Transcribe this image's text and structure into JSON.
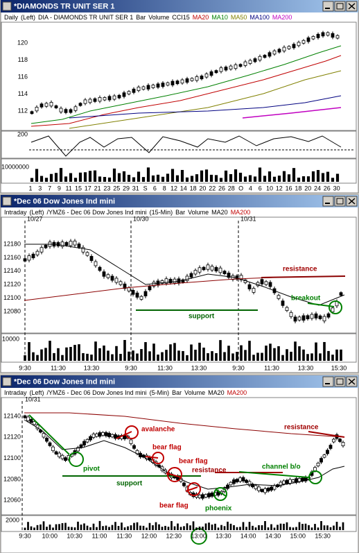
{
  "windows": [
    {
      "title": "*DIAMONDS TR UNIT SER 1",
      "header": [
        {
          "label": "Daily",
          "color": "#000000"
        },
        {
          "label": "(Left)",
          "color": "#000000"
        },
        {
          "label": "DIA - DIAMONDS TR UNIT SER 1",
          "color": "#000000"
        },
        {
          "label": "Bar",
          "color": "#000000"
        },
        {
          "label": "Volume",
          "color": "#000000"
        },
        {
          "label": "CCI15",
          "color": "#000000"
        },
        {
          "label": "MA20",
          "color": "#c00000"
        },
        {
          "label": "MA10",
          "color": "#008000"
        },
        {
          "label": "MA50",
          "color": "#808000"
        },
        {
          "label": "MA100",
          "color": "#000080"
        },
        {
          "label": "MA200",
          "color": "#c000c0"
        }
      ],
      "yticks": [
        "120",
        "118",
        "116",
        "114",
        "112"
      ],
      "indicator_ticks": [
        "200"
      ],
      "volume_ticks": [
        "10000000"
      ],
      "xticks": [
        "1",
        "3",
        "7",
        "9",
        "11",
        "15",
        "17",
        "21",
        "23",
        "25",
        "29",
        "31",
        "S",
        "6",
        "8",
        "12",
        "14",
        "18",
        "20",
        "22",
        "26",
        "28",
        "O",
        "4",
        "6",
        "10",
        "12",
        "16",
        "18",
        "20",
        "24",
        "26",
        "30"
      ]
    },
    {
      "title": "*Dec 06  Dow Jones Ind mini",
      "header": [
        {
          "label": "Intraday",
          "color": "#000000"
        },
        {
          "label": "(Left)",
          "color": "#000000"
        },
        {
          "label": "/YMZ6 - Dec 06  Dow Jones Ind mini",
          "color": "#000000"
        },
        {
          "label": "(15-Min)",
          "color": "#000000"
        },
        {
          "label": "Bar",
          "color": "#000000"
        },
        {
          "label": "Volume",
          "color": "#000000"
        },
        {
          "label": "MA20",
          "color": "#000000"
        },
        {
          "label": "MA200",
          "color": "#c00000"
        }
      ],
      "dates": [
        "10/27",
        "10/30",
        "10/31"
      ],
      "yticks": [
        "12180",
        "12160",
        "12140",
        "12120",
        "12100",
        "12080"
      ],
      "volume_ticks": [
        "10000"
      ],
      "xticks": [
        "9:30",
        "11:30",
        "13:30",
        "9:30",
        "11:30",
        "13:30",
        "9:30",
        "11:30",
        "13:30",
        "15:30"
      ],
      "annotations": [
        "resistance",
        "breakout",
        "support"
      ]
    },
    {
      "title": "*Dec 06  Dow Jones Ind mini",
      "header": [
        {
          "label": "Intraday",
          "color": "#000000"
        },
        {
          "label": "(Left)",
          "color": "#000000"
        },
        {
          "label": "/YMZ6 - Dec 06  Dow Jones Ind mini",
          "color": "#000000"
        },
        {
          "label": "(5-Min)",
          "color": "#000000"
        },
        {
          "label": "Bar",
          "color": "#000000"
        },
        {
          "label": "Volume",
          "color": "#000000"
        },
        {
          "label": "MA20",
          "color": "#000000"
        },
        {
          "label": "MA200",
          "color": "#c00000"
        }
      ],
      "dates": [
        "10/31"
      ],
      "yticks": [
        "12140",
        "12120",
        "12100",
        "12080",
        "12060"
      ],
      "volume_ticks": [
        "2000"
      ],
      "xticks": [
        "9:30",
        "10:00",
        "10:30",
        "11:00",
        "11:30",
        "12:00",
        "12:30",
        "13:00",
        "13:30",
        "14:00",
        "14:30",
        "15:00",
        "15:30"
      ],
      "annotations": [
        "pivot",
        "avalanche",
        "bear flag",
        "bear flag",
        "bear flag",
        "resistance",
        "support",
        "phoenix",
        "channel b/o",
        "resistance"
      ]
    }
  ]
}
